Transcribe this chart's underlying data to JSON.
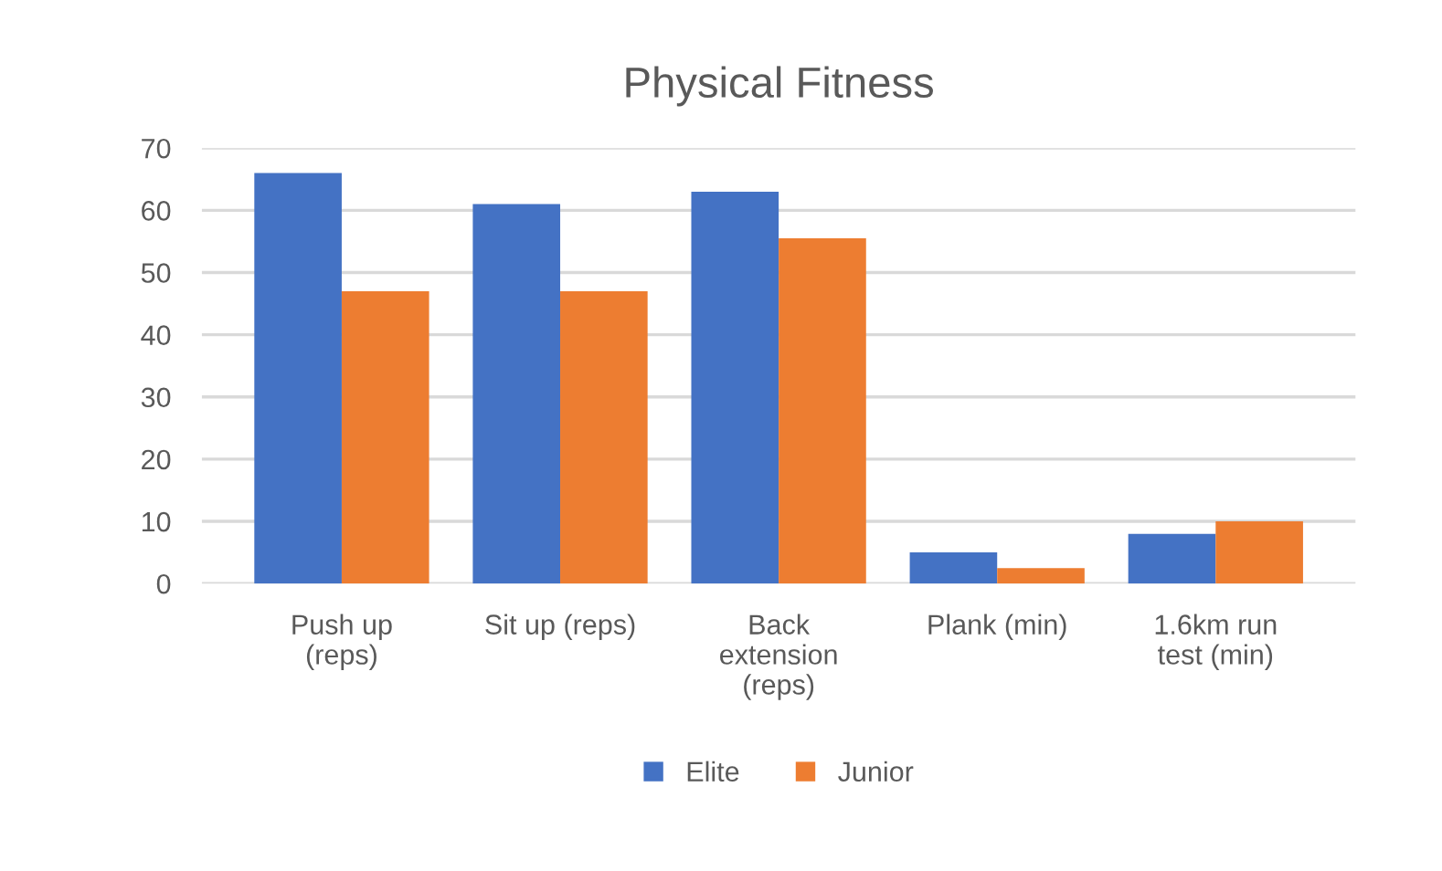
{
  "chart_data": {
    "type": "bar",
    "title": "Physical Fitness",
    "categories": [
      "Push up\n(reps)",
      "Sit up (reps)",
      "Back\nextension\n(reps)",
      "Plank (min)",
      "1.6km run\ntest (min)"
    ],
    "series": [
      {
        "name": "Elite",
        "color": "#4472c4",
        "values": [
          66,
          61,
          63,
          5,
          8
        ]
      },
      {
        "name": "Junior",
        "color": "#ed7d31",
        "values": [
          47,
          47,
          55.5,
          2.5,
          10
        ]
      }
    ],
    "ylim": [
      0,
      70
    ],
    "yticks": [
      0,
      10,
      20,
      30,
      40,
      50,
      60,
      70
    ],
    "grid": "y",
    "legend": "bottom"
  }
}
